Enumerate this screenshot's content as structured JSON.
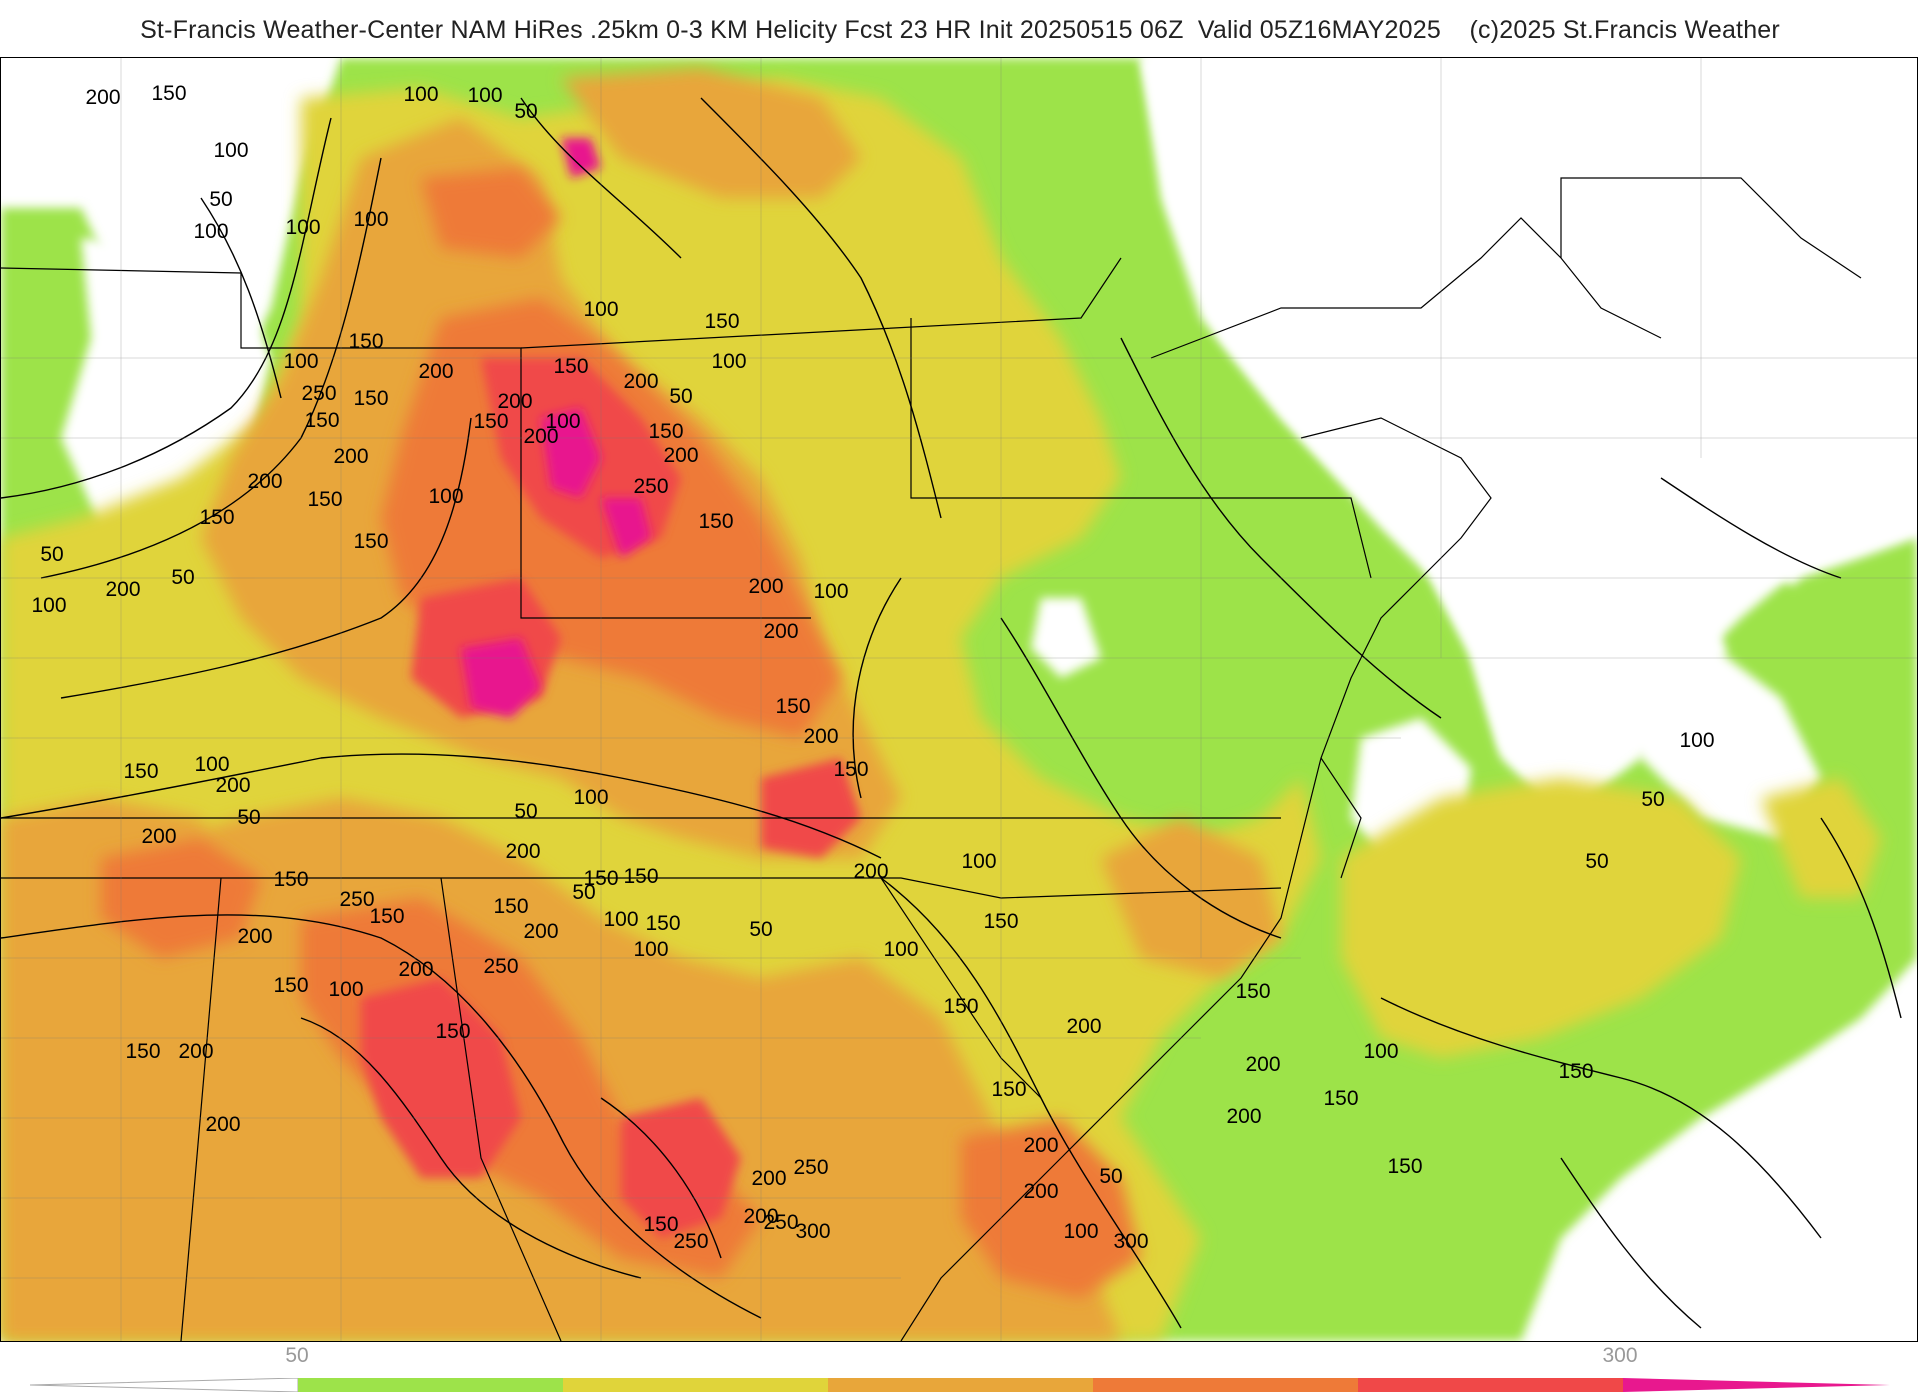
{
  "title": "St-Francis Weather-Center NAM HiRes .25km 0-3 KM Helicity Fcst 23 HR Init 20250515 06Z  Valid 05Z16MAY2025    (c)2025 St.Francis Weather",
  "legend": {
    "tick_labels": [
      "50",
      "300"
    ],
    "colors": {
      "50_100": "#9de34a",
      "100_150": "#e0d43a",
      "150_200": "#e8a63a",
      "200_250": "#ee7a38",
      "250_300": "#f04848",
      "300_plus": "#e8188e"
    }
  },
  "contour_labels": [
    "50",
    "100",
    "100",
    "150",
    "200",
    "100",
    "50",
    "100",
    "100",
    "100",
    "150",
    "200",
    "150",
    "150",
    "200",
    "150",
    "50",
    "200",
    "50",
    "100",
    "150",
    "200",
    "250",
    "100",
    "150",
    "100",
    "150",
    "200",
    "200",
    "100",
    "150",
    "200",
    "100",
    "150",
    "200",
    "150",
    "100",
    "50",
    "250",
    "150",
    "200",
    "200",
    "100",
    "150",
    "200",
    "150",
    "200",
    "50",
    "150",
    "100",
    "50",
    "200",
    "150",
    "200",
    "250",
    "150",
    "250",
    "200",
    "150",
    "200",
    "200",
    "150",
    "200",
    "150",
    "100",
    "50",
    "200",
    "150",
    "200",
    "100",
    "150",
    "50",
    "100",
    "150",
    "150",
    "100",
    "100",
    "150",
    "100",
    "150",
    "150",
    "200",
    "200",
    "50",
    "200",
    "100",
    "150",
    "200",
    "300",
    "250",
    "200",
    "250",
    "250",
    "150",
    "200",
    "300",
    "150",
    "150",
    "200",
    "100",
    "150",
    "50",
    "50",
    "100"
  ]
}
